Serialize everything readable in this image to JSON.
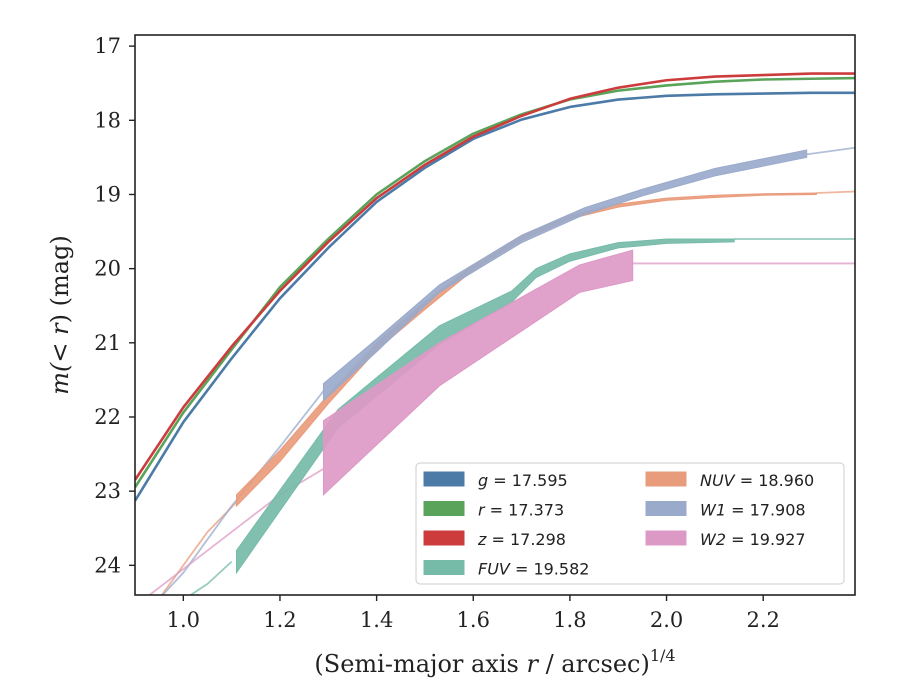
{
  "chart_data": {
    "type": "line",
    "xlabel": "(Semi-major axis r / arcsec)",
    "xlabel_main": "(Semi-major axis ",
    "xlabel_var": "r",
    "xlabel_rest": " / arcsec)",
    "xlabel_exp": "1/4",
    "ylabel_pre": "m(",
    "ylabel_mid": "< ",
    "ylabel_var": "r",
    "ylabel_post": ") (mag)",
    "xlim": [
      0.9,
      2.39
    ],
    "ylim": [
      24.4,
      16.85
    ],
    "y_inverted": true,
    "xticks": [
      1.0,
      1.2,
      1.4,
      1.6,
      1.8,
      2.0,
      2.2
    ],
    "xtick_labels": [
      "1.0",
      "1.2",
      "1.4",
      "1.6",
      "1.8",
      "2.0",
      "2.2"
    ],
    "yticks": [
      17,
      18,
      19,
      20,
      21,
      22,
      23,
      24
    ],
    "ytick_labels": [
      "17",
      "18",
      "19",
      "20",
      "21",
      "22",
      "23",
      "24"
    ],
    "grid": false,
    "legend_position": "lower-right",
    "legend": [
      {
        "var": "g",
        "value": "17.595",
        "color": "#4c7ba8",
        "column": 0
      },
      {
        "var": "r",
        "value": "17.373",
        "color": "#5aa35a",
        "column": 0
      },
      {
        "var": "z",
        "value": "17.298",
        "color": "#cc3c3c",
        "column": 0
      },
      {
        "var": "FUV",
        "value": "19.582",
        "color": "#76bba8",
        "column": 0
      },
      {
        "var": "NUV",
        "value": "18.960",
        "color": "#e99c7c",
        "column": 1
      },
      {
        "var": "W1",
        "value": "17.908",
        "color": "#9aaacb",
        "column": 1
      },
      {
        "var": "W2",
        "value": "19.927",
        "color": "#dd99c6",
        "column": 1
      }
    ],
    "series": [
      {
        "name": "g",
        "color": "#4c7ba8",
        "kind": "line",
        "width": 2.6,
        "x": [
          0.9,
          1.0,
          1.1,
          1.2,
          1.3,
          1.4,
          1.5,
          1.6,
          1.7,
          1.8,
          1.9,
          2.0,
          2.1,
          2.2,
          2.3,
          2.39
        ],
        "y": [
          23.13,
          22.07,
          21.21,
          20.4,
          19.72,
          19.1,
          18.64,
          18.25,
          17.99,
          17.82,
          17.72,
          17.67,
          17.65,
          17.64,
          17.63,
          17.63
        ]
      },
      {
        "name": "r",
        "color": "#5aa35a",
        "kind": "line",
        "width": 2.6,
        "x": [
          0.9,
          1.0,
          1.1,
          1.2,
          1.3,
          1.4,
          1.5,
          1.6,
          1.7,
          1.8,
          1.9,
          2.0,
          2.1,
          2.2,
          2.3,
          2.39
        ],
        "y": [
          22.95,
          21.94,
          21.09,
          20.25,
          19.6,
          19.0,
          18.55,
          18.18,
          17.92,
          17.72,
          17.6,
          17.53,
          17.48,
          17.45,
          17.44,
          17.43
        ]
      },
      {
        "name": "z",
        "color": "#cc3c3c",
        "kind": "line",
        "width": 2.6,
        "x": [
          0.9,
          1.0,
          1.1,
          1.2,
          1.3,
          1.4,
          1.5,
          1.6,
          1.7,
          1.8,
          1.9,
          2.0,
          2.1,
          2.2,
          2.3,
          2.39
        ],
        "y": [
          22.85,
          21.87,
          21.05,
          20.3,
          19.64,
          19.05,
          18.6,
          18.22,
          17.94,
          17.71,
          17.56,
          17.46,
          17.41,
          17.39,
          17.37,
          17.37
        ]
      },
      {
        "name": "FUV",
        "color": "#76bba8",
        "kind": "faint",
        "x": [
          0.98,
          1.05,
          1.1
        ],
        "y": [
          24.55,
          24.25,
          23.95
        ]
      },
      {
        "name": "FUV",
        "color": "#76bba8",
        "kind": "faint",
        "x": [
          2.14,
          2.39
        ],
        "y": [
          19.6,
          19.6
        ]
      },
      {
        "name": "FUV",
        "color": "#76bba8",
        "kind": "band",
        "x": [
          1.11,
          1.32,
          1.53,
          1.68,
          1.73,
          1.8,
          1.9,
          2.0,
          2.14
        ],
        "lo": [
          23.8,
          21.9,
          20.77,
          20.3,
          20.0,
          19.8,
          19.65,
          19.6,
          19.6
        ],
        "hi": [
          24.1,
          22.15,
          21.02,
          20.45,
          20.12,
          19.9,
          19.72,
          19.66,
          19.64
        ]
      },
      {
        "name": "NUV",
        "color": "#e99c7c",
        "kind": "faint",
        "x": [
          0.95,
          1.0,
          1.05,
          1.11
        ],
        "y": [
          24.45,
          24.0,
          23.55,
          23.15
        ]
      },
      {
        "name": "NUV",
        "color": "#e99c7c",
        "kind": "faint",
        "x": [
          2.31,
          2.39
        ],
        "y": [
          18.98,
          18.96
        ]
      },
      {
        "name": "NUV",
        "color": "#e99c7c",
        "kind": "band",
        "x": [
          1.11,
          1.2,
          1.3,
          1.4,
          1.5,
          1.6,
          1.7,
          1.8,
          1.9,
          2.0,
          2.1,
          2.2,
          2.31
        ],
        "lo": [
          23.05,
          22.45,
          21.7,
          21.0,
          20.45,
          19.95,
          19.55,
          19.28,
          19.13,
          19.05,
          19.01,
          18.99,
          18.98
        ],
        "hi": [
          23.2,
          22.6,
          21.82,
          21.1,
          20.55,
          20.02,
          19.62,
          19.33,
          19.17,
          19.08,
          19.04,
          19.01,
          19.0
        ]
      },
      {
        "name": "W1",
        "color": "#9aaacb",
        "kind": "faint",
        "x": [
          0.9,
          1.0,
          1.1,
          1.2,
          1.29
        ],
        "y": [
          24.8,
          24.1,
          23.2,
          22.4,
          21.65
        ]
      },
      {
        "name": "W1",
        "color": "#9aaacb",
        "kind": "faint",
        "x": [
          2.29,
          2.39
        ],
        "y": [
          18.46,
          18.37
        ]
      },
      {
        "name": "W1",
        "color": "#9aaacb",
        "kind": "band",
        "x": [
          1.29,
          1.4,
          1.53,
          1.7,
          1.83,
          1.95,
          2.1,
          2.29
        ],
        "lo": [
          21.55,
          20.95,
          20.22,
          19.55,
          19.18,
          18.93,
          18.65,
          18.4
        ],
        "hi": [
          21.78,
          21.12,
          20.32,
          19.65,
          19.27,
          19.02,
          18.75,
          18.5
        ]
      },
      {
        "name": "W2",
        "color": "#dd99c6",
        "kind": "faint",
        "x": [
          0.9,
          1.0,
          1.1,
          1.2,
          1.29
        ],
        "y": [
          24.55,
          24.05,
          23.55,
          23.05,
          22.7
        ]
      },
      {
        "name": "W2",
        "color": "#dd99c6",
        "kind": "faint",
        "x": [
          1.93,
          2.39
        ],
        "y": [
          19.93,
          19.93
        ]
      },
      {
        "name": "W2",
        "color": "#dd99c6",
        "kind": "band",
        "x": [
          1.29,
          1.53,
          1.82,
          1.93
        ],
        "lo": [
          22.05,
          21.0,
          19.95,
          19.75
        ],
        "hi": [
          23.05,
          21.58,
          20.32,
          20.16
        ]
      }
    ]
  }
}
